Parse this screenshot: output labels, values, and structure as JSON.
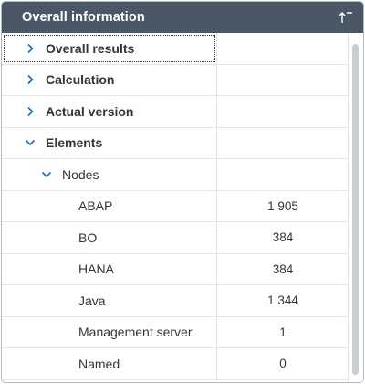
{
  "header": {
    "title": "Overall information",
    "sort_icon": "sort-ascending-icon"
  },
  "rows": [
    {
      "label": "Overall results",
      "value": "",
      "level": 0,
      "expandable": true,
      "expanded": false
    },
    {
      "label": "Calculation",
      "value": "",
      "level": 0,
      "expandable": true,
      "expanded": false
    },
    {
      "label": "Actual version",
      "value": "",
      "level": 0,
      "expandable": true,
      "expanded": false
    },
    {
      "label": "Elements",
      "value": "",
      "level": 0,
      "expandable": true,
      "expanded": true
    },
    {
      "label": "Nodes",
      "value": "",
      "level": 1,
      "expandable": true,
      "expanded": true
    },
    {
      "label": "ABAP",
      "value": "1 905",
      "level": 2,
      "expandable": false
    },
    {
      "label": "BO",
      "value": "384",
      "level": 2,
      "expandable": false
    },
    {
      "label": "HANA",
      "value": "384",
      "level": 2,
      "expandable": false
    },
    {
      "label": "Java",
      "value": "1 344",
      "level": 2,
      "expandable": false
    },
    {
      "label": "Management server",
      "value": "1",
      "level": 2,
      "expandable": false
    },
    {
      "label": "Named",
      "value": "0",
      "level": 2,
      "expandable": false
    }
  ],
  "colors": {
    "header_bg": "#495767",
    "text": "#32363a",
    "chevron": "#0a6ed1"
  }
}
